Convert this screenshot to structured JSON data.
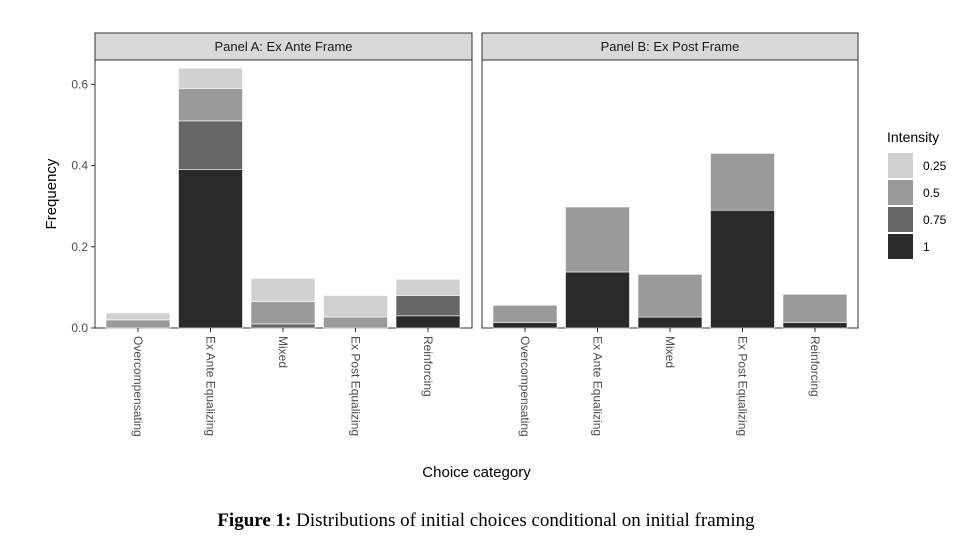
{
  "chart_data": {
    "type": "bar",
    "stacked": true,
    "panels": [
      {
        "title": "Panel A: Ex Ante Frame",
        "categories": [
          "Overcompensating",
          "Ex Ante Equalizing",
          "Mixed",
          "Ex Post Equalizing",
          "Reinforcing"
        ],
        "series": [
          {
            "name": "1",
            "values": [
              0.0,
              0.39,
              0.0,
              0.0,
              0.03
            ]
          },
          {
            "name": "0.75",
            "values": [
              0.0,
              0.12,
              0.01,
              0.0,
              0.05
            ]
          },
          {
            "name": "0.5",
            "values": [
              0.02,
              0.08,
              0.055,
              0.027,
              0.0
            ]
          },
          {
            "name": "0.25",
            "values": [
              0.017,
              0.05,
              0.057,
              0.053,
              0.04
            ]
          }
        ]
      },
      {
        "title": "Panel B: Ex Post Frame",
        "categories": [
          "Overcompensating",
          "Ex Ante Equalizing",
          "Mixed",
          "Ex Post Equalizing",
          "Reinforcing"
        ],
        "series": [
          {
            "name": "1",
            "values": [
              0.013,
              0.138,
              0.027,
              0.29,
              0.013
            ]
          },
          {
            "name": "0.75",
            "values": [
              0.0,
              0.0,
              0.0,
              0.0,
              0.0
            ]
          },
          {
            "name": "0.5",
            "values": [
              0.043,
              0.16,
              0.105,
              0.14,
              0.07
            ]
          },
          {
            "name": "0.25",
            "values": [
              0.0,
              0.0,
              0.0,
              0.0,
              0.0
            ]
          }
        ]
      }
    ],
    "xlabel": "Choice category",
    "ylabel": "Frequency",
    "ylim": [
      0,
      0.66
    ],
    "yticks": [
      0.0,
      0.2,
      0.4,
      0.6
    ],
    "ytick_labels": [
      "0.0",
      "0.2",
      "0.4",
      "0.6"
    ],
    "grid": false,
    "legend": {
      "title": "Intensity",
      "placement": "right",
      "entries": [
        {
          "label": "0.25",
          "color": "#d1d1d1"
        },
        {
          "label": "0.5",
          "color": "#9a9a9a"
        },
        {
          "label": "0.75",
          "color": "#666666"
        },
        {
          "label": "1",
          "color": "#2a2a2a"
        }
      ]
    },
    "series_colors": {
      "1": "#2a2a2a",
      "0.75": "#666666",
      "0.5": "#9a9a9a",
      "0.25": "#d1d1d1"
    },
    "x_tick_rotation": "vertical"
  },
  "caption": {
    "label": "Figure 1:",
    "text": "Distributions of initial choices conditional on initial framing"
  }
}
